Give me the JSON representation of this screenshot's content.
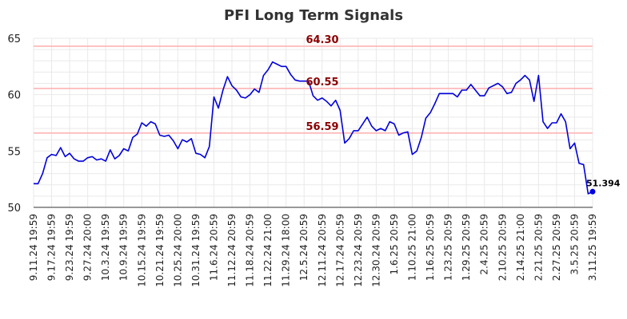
{
  "chart_data": {
    "type": "line",
    "title": "PFI Long Term Signals",
    "xlabel": "",
    "ylabel": "",
    "ylim": [
      50,
      65
    ],
    "yticks": [
      50,
      55,
      60,
      65
    ],
    "grid": true,
    "line_color": "#0000dd",
    "level_line_color": "#ffb3b3",
    "level_label_color": "#8b0000",
    "x_tick_labels": [
      "9.11.24 19:59",
      "9.17.24 19:59",
      "9.23.24 19:59",
      "9.27.24 20:00",
      "10.3.24 19:59",
      "10.9.24 19:59",
      "10.15.24 19:59",
      "10.21.24 19:59",
      "10.25.24 20:00",
      "10.31.24 19:59",
      "11.6.24 20:59",
      "11.12.24 20:59",
      "11.18.24 20:59",
      "11.22.24 21:00",
      "11.29.24 18:00",
      "12.5.24 20:59",
      "12.11.24 20:59",
      "12.17.24 20:59",
      "12.23.24 20:59",
      "12.30.24 20:59",
      "1.6.25 20:59",
      "1.10.25 21:00",
      "1.16.25 20:59",
      "1.23.25 20:59",
      "1.29.25 20:59",
      "2.4.25 20:59",
      "2.10.25 20:59",
      "2.14.25 21:00",
      "2.21.25 20:59",
      "2.27.25 20:59",
      "3.5.25 20:59",
      "3.11.25 19:59"
    ],
    "levels": [
      {
        "value": 64.3,
        "label": "64.30"
      },
      {
        "value": 60.55,
        "label": "60.55"
      },
      {
        "value": 56.59,
        "label": "56.59"
      }
    ],
    "series": [
      {
        "values": [
          52.1,
          52.1,
          53.0,
          54.4,
          54.7,
          54.6,
          55.3,
          54.5,
          54.8,
          54.3,
          54.1,
          54.1,
          54.4,
          54.5,
          54.2,
          54.3,
          54.1,
          55.1,
          54.3,
          54.6,
          55.2,
          55.0,
          56.2,
          56.5,
          57.5,
          57.2,
          57.6,
          57.4,
          56.4,
          56.3,
          56.4,
          55.9,
          55.2,
          56.0,
          55.8,
          56.1,
          54.8,
          54.7,
          54.4,
          55.4,
          59.8,
          58.8,
          60.4,
          61.6,
          60.8,
          60.4,
          59.8,
          59.7,
          60.0,
          60.5,
          60.2,
          61.7,
          62.2,
          62.9,
          62.7,
          62.5,
          62.5,
          61.8,
          61.3,
          61.2,
          61.2,
          61.2,
          59.9,
          59.5,
          59.7,
          59.4,
          59.0,
          59.5,
          58.6,
          55.7,
          56.1,
          56.8,
          56.8,
          57.4,
          58.0,
          57.2,
          56.8,
          57.0,
          56.8,
          57.6,
          57.4,
          56.4,
          56.6,
          56.7,
          54.7,
          55.0,
          56.2,
          57.9,
          58.4,
          59.2,
          60.1,
          60.1,
          60.1,
          60.1,
          59.8,
          60.4,
          60.4,
          60.9,
          60.4,
          59.9,
          59.9,
          60.6,
          60.8,
          61.0,
          60.7,
          60.1,
          60.2,
          61.0,
          61.3,
          61.7,
          61.3,
          59.4,
          61.7,
          57.6,
          57.0,
          57.5,
          57.5,
          58.3,
          57.6,
          55.2,
          55.7,
          53.9,
          53.8,
          51.2,
          51.394
        ]
      }
    ],
    "last_point": {
      "value": 51.394,
      "label": "51.394"
    }
  }
}
